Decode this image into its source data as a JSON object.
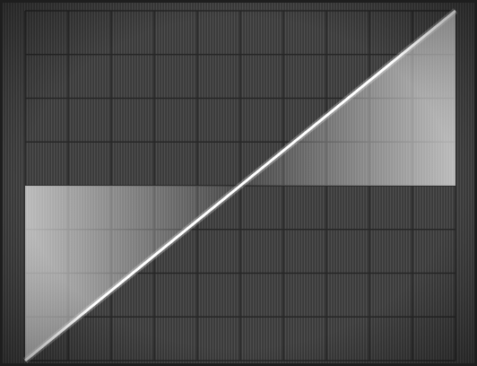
{
  "chart_data": {
    "type": "area",
    "title": "",
    "xlabel": "",
    "ylabel": "",
    "grid": true,
    "grid_divisions": {
      "x": 10,
      "y": 8
    },
    "xlim": [
      0,
      10
    ],
    "ylim": [
      -4,
      4
    ],
    "series": [
      {
        "x": [
          0,
          5,
          10
        ],
        "y": [
          -4,
          0,
          4
        ]
      }
    ],
    "fill_to": 0
  },
  "colors": {
    "background": "#3a3a3a",
    "bezel": "#1e1e1e",
    "grid": "#262626",
    "trace": "#ffffff",
    "fill": "#cfcfcf"
  }
}
